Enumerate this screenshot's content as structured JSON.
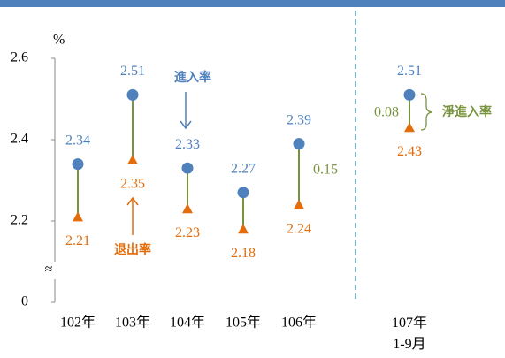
{
  "chart_data": {
    "type": "dumbbell",
    "y_unit": "%",
    "categories": [
      "102年",
      "103年",
      "104年",
      "105年",
      "106年",
      "107年\n1-9月"
    ],
    "series": [
      {
        "name": "進入率",
        "color": "#4f81bd",
        "values": [
          2.34,
          2.51,
          2.33,
          2.27,
          2.39,
          2.51
        ]
      },
      {
        "name": "退出率",
        "color": "#e46c0a",
        "values": [
          2.21,
          2.35,
          2.23,
          2.18,
          2.24,
          2.43
        ]
      }
    ],
    "stem_color": "#77933c",
    "ylim": [
      2.2,
      2.6
    ],
    "yticks": [
      2.2,
      2.4,
      2.6
    ],
    "baseline_tick": 0,
    "axis_break": "≈",
    "net_labels": [
      {
        "value": 0.15,
        "category": 4
      },
      {
        "value": 0.08,
        "category": 5
      }
    ],
    "net_name": "淨進入率"
  }
}
